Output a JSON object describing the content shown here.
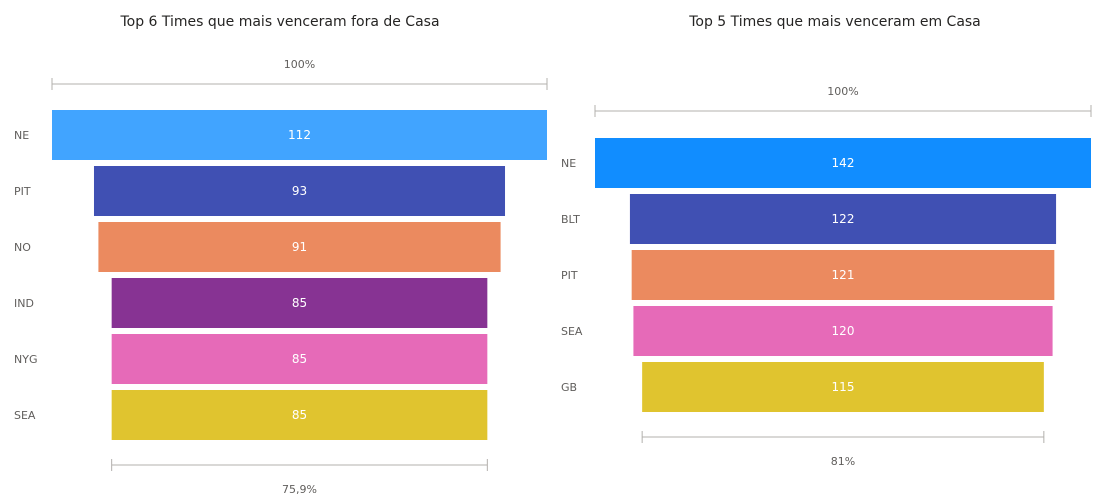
{
  "chart_data": [
    {
      "type": "funnel",
      "title": "Top 6 Times que mais venceram fora de Casa",
      "categories": [
        "NE",
        "PIT",
        "NO",
        "IND",
        "NYG",
        "SEA"
      ],
      "values": [
        112,
        93,
        91,
        85,
        85,
        85
      ],
      "value_labels": [
        "112",
        "93",
        "91",
        "85",
        "85",
        "85"
      ],
      "top_percent_label": "100%",
      "bottom_percent_label": "75,9%",
      "colors": [
        "#41a4ff",
        "#4050b3",
        "#eb8a5f",
        "#873393",
        "#e66ab8",
        "#e0c42f"
      ]
    },
    {
      "type": "funnel",
      "title": "Top 5 Times que mais venceram em Casa",
      "categories": [
        "NE",
        "BLT",
        "PIT",
        "SEA",
        "GB"
      ],
      "values": [
        142,
        122,
        121,
        120,
        115
      ],
      "value_labels": [
        "142",
        "122",
        "121",
        "120",
        "115"
      ],
      "top_percent_label": "100%",
      "bottom_percent_label": "81%",
      "colors": [
        "#118dff",
        "#4050b3",
        "#eb8a5f",
        "#e66ab8",
        "#e0c42f"
      ]
    }
  ]
}
